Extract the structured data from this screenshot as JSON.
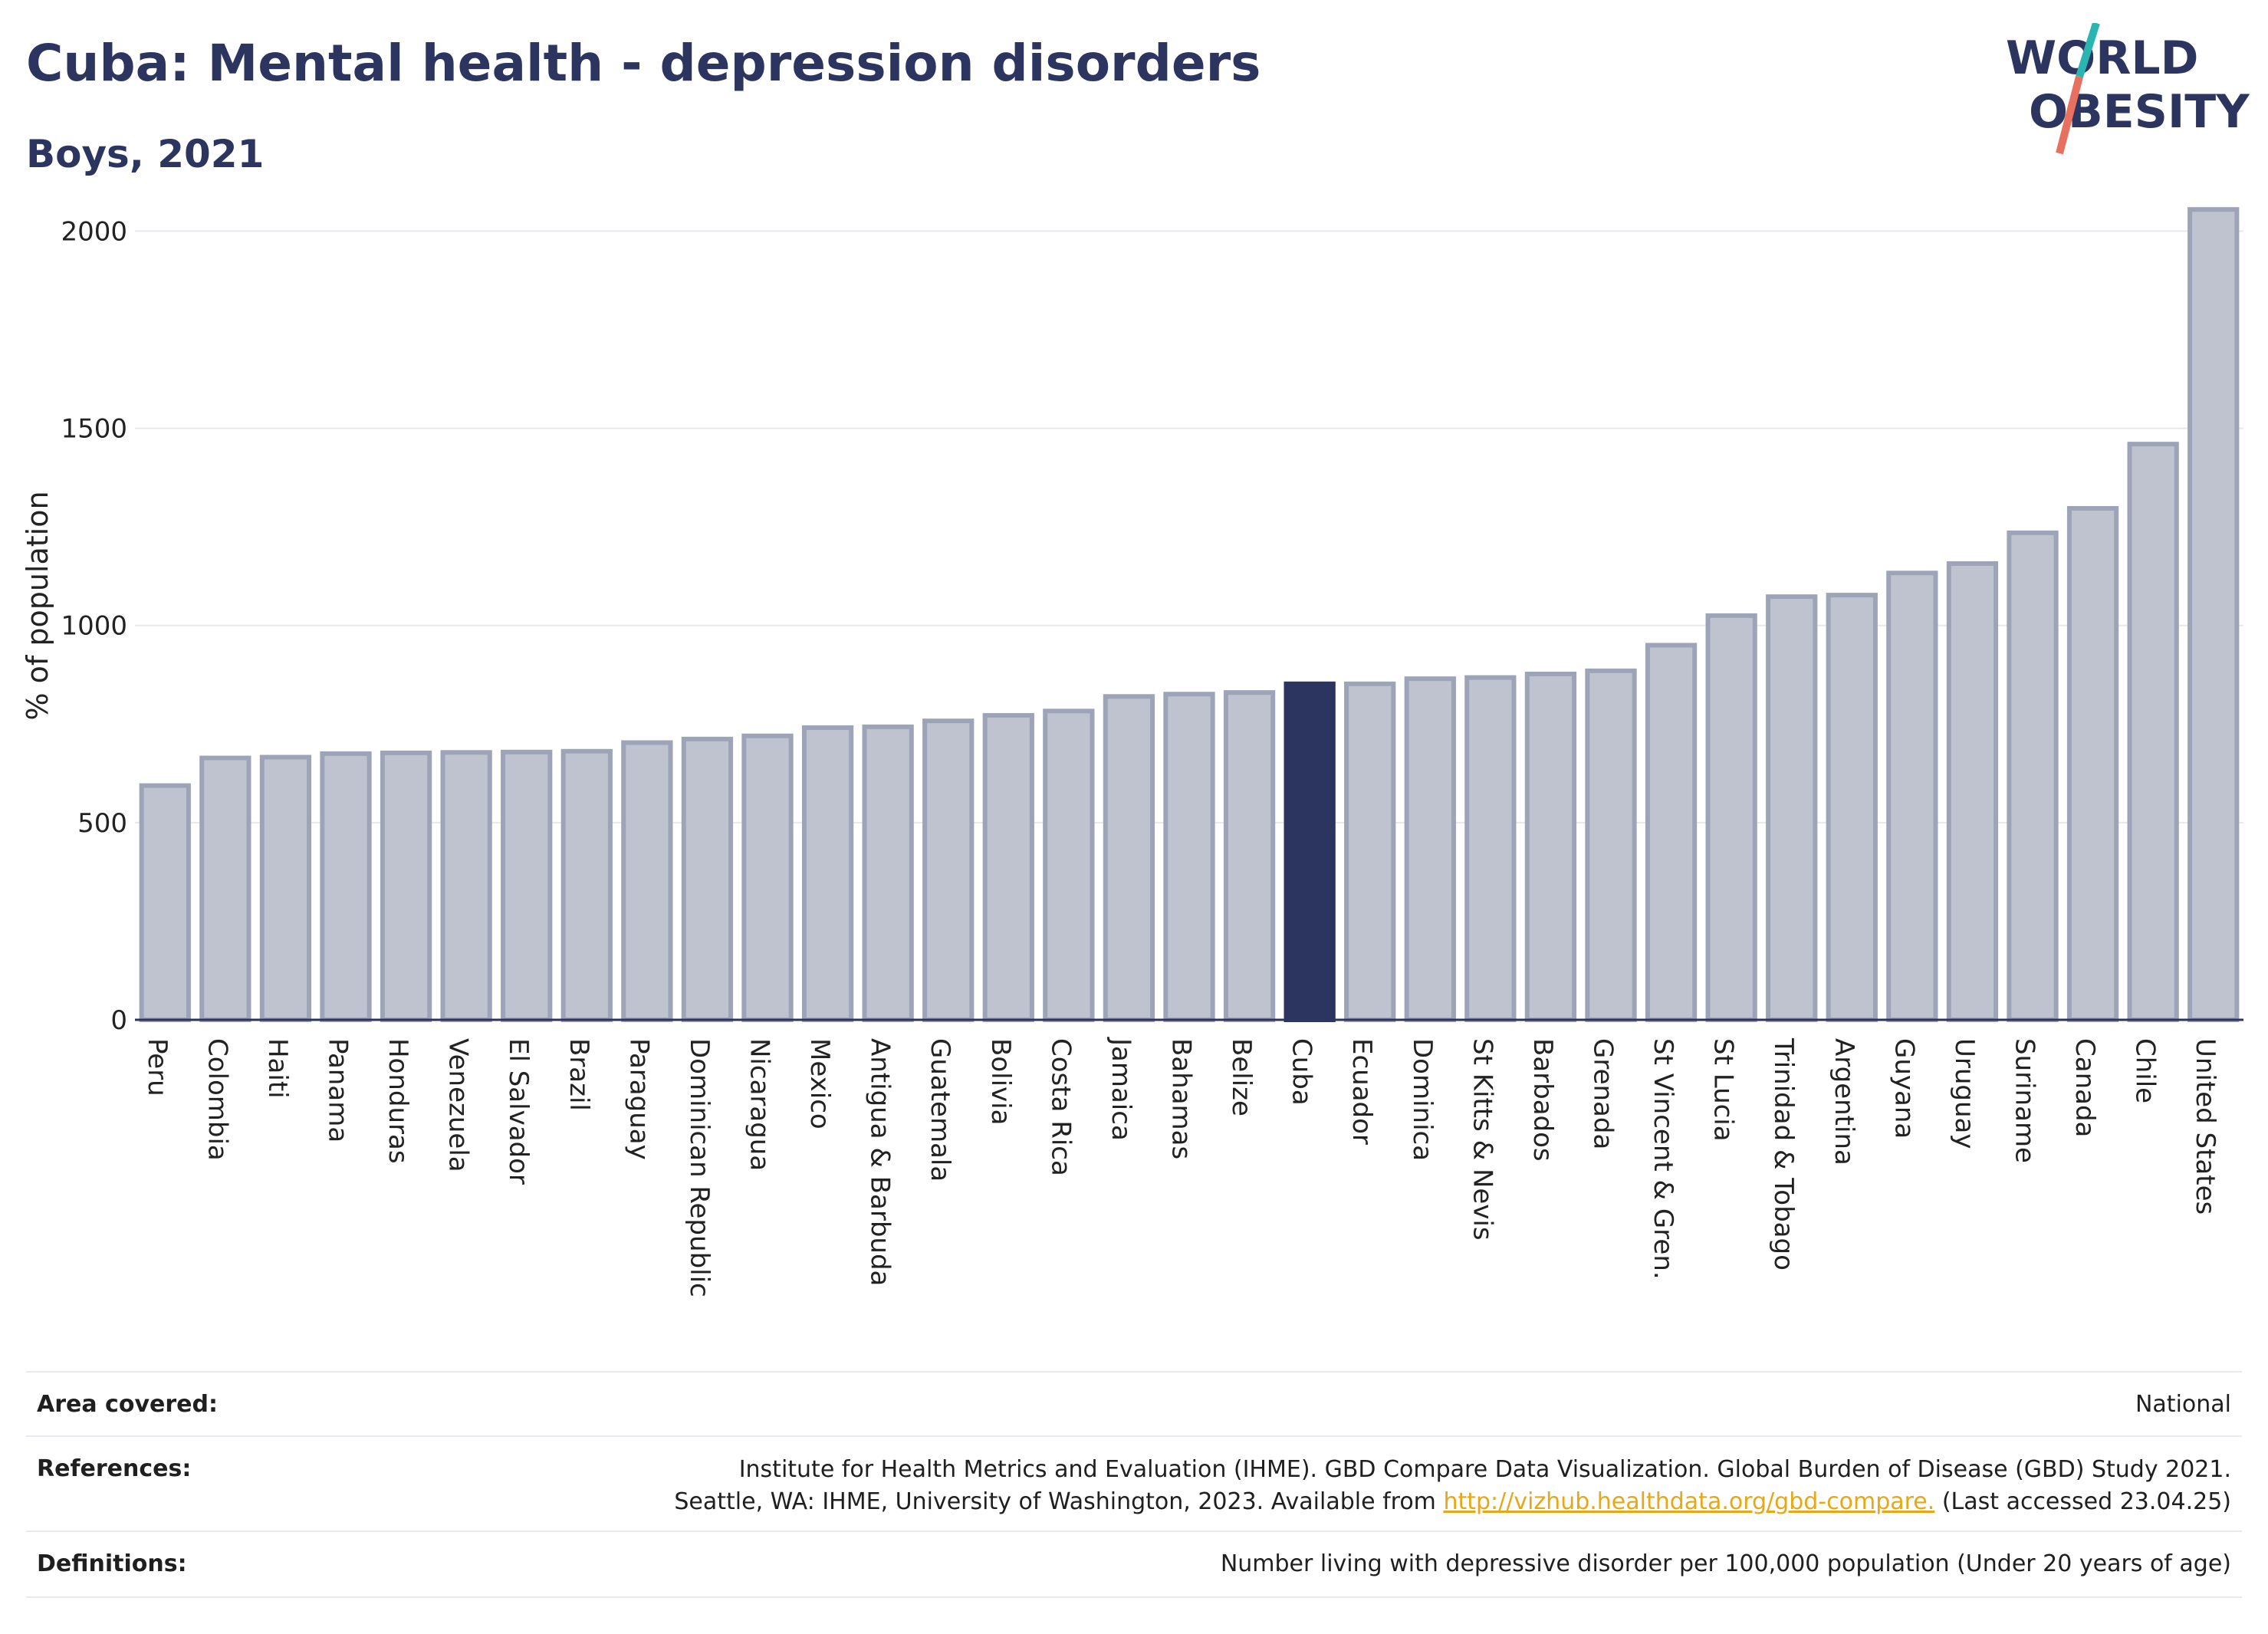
{
  "header": {
    "title": "Cuba: Mental health - depression disorders",
    "subtitle": "Boys, 2021"
  },
  "logo": {
    "line1": "WORLD",
    "line2": "OBESITY",
    "colors": {
      "text": "#2b3560",
      "slash_top": "#2bb5b0",
      "slash_bottom": "#e8705f"
    }
  },
  "chart_data": {
    "type": "bar",
    "ylabel": "% of population",
    "xlabel": "",
    "ylim": [
      0,
      2100
    ],
    "yticks": [
      0,
      500,
      1000,
      1500,
      2000
    ],
    "grid": true,
    "highlight": "Cuba",
    "colors": {
      "bar": "#bfc3cf",
      "bar_border": "#9ea4b8",
      "highlight": "#2b3560"
    },
    "categories": [
      "Peru",
      "Colombia",
      "Haiti",
      "Panama",
      "Honduras",
      "Venezuela",
      "El Salvador",
      "Brazil",
      "Paraguay",
      "Dominican Republic",
      "Nicaragua",
      "Mexico",
      "Antigua & Barbuda",
      "Guatemala",
      "Bolivia",
      "Costa Rica",
      "Jamaica",
      "Bahamas",
      "Belize",
      "Cuba",
      "Ecuador",
      "Dominica",
      "St Kitts & Nevis",
      "Barbados",
      "Grenada",
      "St Vincent & Gren.",
      "St Lucia",
      "Trinidad & Tobago",
      "Argentina",
      "Guyana",
      "Uruguay",
      "Suriname",
      "Canada",
      "Chile",
      "United States"
    ],
    "values": [
      594,
      664,
      666,
      675,
      677,
      678,
      679,
      681,
      703,
      712,
      720,
      741,
      743,
      758,
      772,
      783,
      820,
      826,
      830,
      852,
      852,
      865,
      868,
      877,
      885,
      950,
      1025,
      1073,
      1077,
      1133,
      1157,
      1235,
      1297,
      1460,
      2055
    ]
  },
  "footer": {
    "rows": [
      {
        "key": "Area covered:",
        "value": "National"
      },
      {
        "key": "References:",
        "line1": "Institute for Health Metrics and Evaluation (IHME). GBD Compare Data Visualization. Global Burden of Disease (GBD) Study 2021.",
        "line2_pre": "Seattle, WA: IHME, University of Washington, 2023. Available from ",
        "link": "http://vizhub.healthdata.org/gbd-compare.",
        "line2_post": " (Last accessed 23.04.25)"
      },
      {
        "key": "Definitions:",
        "value": "Number living with depressive disorder per 100,000 population (Under 20 years of age)"
      }
    ]
  }
}
